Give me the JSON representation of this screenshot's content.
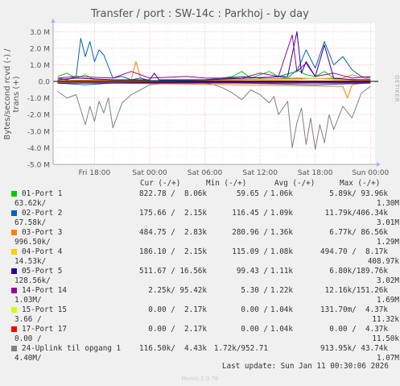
{
  "title": "Transfer / port : SW-14c : Parkhoj - by day",
  "side_label": "RRDTOOL / TOBI OETIKER",
  "munin": "Munin 2.0.76",
  "footer": "Last update: Sun Jan 11 00:30:06 2026",
  "headers": {
    "cur": "Cur (-/+)",
    "min": "Min (-/+)",
    "avg": "Avg (-/+)",
    "max": "Max (-/+)"
  },
  "chart_data": {
    "type": "line",
    "ylabel": "Bytes/second rcvd (-) / trans (+)",
    "ylim": [
      -5.0,
      3.5
    ],
    "yticks": [
      "3.0 M",
      "2.0 M",
      "1.0 M",
      "0.0",
      "-1.0 M",
      "-2.0 M",
      "-3.0 M",
      "-4.0 M",
      "-5.0 M"
    ],
    "ytick_values": [
      3,
      2,
      1,
      0,
      -1,
      -2,
      -3,
      -4,
      -5
    ],
    "xticks": [
      "Fri 18:00",
      "Sat 00:00",
      "Sat 06:00",
      "Sat 12:00",
      "Sat 18:00",
      "Sun 00:00"
    ],
    "xtick_hours": [
      18,
      24,
      30,
      36,
      42,
      48
    ],
    "xlim_hours": [
      13.5,
      48.5
    ],
    "series": [
      {
        "name": "01-Port 1",
        "color": "#00cc00",
        "cur": "822.78 /  8.06k",
        "min": "59.65 /",
        "avg": "1.06k",
        "max": "5.89k/ 93.96k",
        "cur2": "63.62k/",
        "max2": "1.30M",
        "out": [
          [
            14,
            0.3
          ],
          [
            15,
            0.5
          ],
          [
            16,
            0.2
          ],
          [
            17,
            0.4
          ],
          [
            18,
            0.1
          ],
          [
            20,
            0.05
          ],
          [
            22,
            0.1
          ],
          [
            24,
            0.05
          ],
          [
            30,
            0.05
          ],
          [
            33,
            0.3
          ],
          [
            34,
            0.6
          ],
          [
            35,
            0.2
          ],
          [
            36,
            0.4
          ],
          [
            37,
            0.6
          ],
          [
            38,
            0.3
          ],
          [
            39,
            0.2
          ],
          [
            40,
            0.7
          ],
          [
            41,
            0.4
          ],
          [
            42,
            0.3
          ],
          [
            43,
            0.6
          ],
          [
            44,
            0.2
          ],
          [
            46,
            0.1
          ],
          [
            48,
            0.1
          ]
        ],
        "in": [
          [
            14,
            -0.05
          ],
          [
            20,
            -0.02
          ],
          [
            30,
            -0.02
          ],
          [
            40,
            -0.05
          ],
          [
            48,
            -0.02
          ]
        ]
      },
      {
        "name": "02-Port 2",
        "color": "#0066b3",
        "cur": "175.66 /  2.15k",
        "min": "116.45 /",
        "avg": "1.09k",
        "max": "11.79k/406.34k",
        "cur2": "67.58k/",
        "max2": "3.01M",
        "out": [
          [
            14,
            0.2
          ],
          [
            15,
            0.1
          ],
          [
            16,
            0.3
          ],
          [
            16.5,
            2.6
          ],
          [
            17,
            1.5
          ],
          [
            17.5,
            2.4
          ],
          [
            18,
            1.2
          ],
          [
            18.5,
            1.9
          ],
          [
            19,
            1.6
          ],
          [
            19.5,
            0.9
          ],
          [
            20,
            0.2
          ],
          [
            21,
            0.3
          ],
          [
            22,
            0.1
          ],
          [
            23,
            0.2
          ],
          [
            24,
            0.05
          ],
          [
            28,
            0.05
          ],
          [
            30,
            0.1
          ],
          [
            34,
            0.3
          ],
          [
            36,
            0.2
          ],
          [
            38,
            0.3
          ],
          [
            40,
            0.6
          ],
          [
            41,
            1.9
          ],
          [
            42,
            0.8
          ],
          [
            43,
            2.4
          ],
          [
            44,
            1.0
          ],
          [
            45,
            1.5
          ],
          [
            46,
            0.7
          ],
          [
            47,
            0.3
          ],
          [
            48,
            0.2
          ]
        ],
        "in": [
          [
            14,
            -0.1
          ],
          [
            17,
            -0.2
          ],
          [
            20,
            -0.1
          ],
          [
            30,
            -0.05
          ],
          [
            42,
            -0.2
          ],
          [
            48,
            -0.1
          ]
        ]
      },
      {
        "name": "03-Port 3",
        "color": "#ff8000",
        "cur": "484.75 /  2.83k",
        "min": "280.96 /",
        "avg": "1.36k",
        "max": "6.77k/ 86.56k",
        "cur2": "996.50k/",
        "max2": "1.29M",
        "out": [
          [
            14,
            0.05
          ],
          [
            22,
            0.1
          ],
          [
            22.5,
            1.2
          ],
          [
            23,
            0.2
          ],
          [
            24,
            0.05
          ],
          [
            45,
            0.2
          ],
          [
            46,
            0.4
          ],
          [
            48,
            0.1
          ]
        ],
        "in": [
          [
            14,
            -0.05
          ],
          [
            45,
            -0.3
          ],
          [
            45.5,
            -1.0
          ],
          [
            46,
            -0.2
          ],
          [
            48,
            -0.05
          ]
        ]
      },
      {
        "name": "04-Port 4",
        "color": "#ffcc00",
        "cur": "186.10 /  2.15k",
        "min": "115.09 /",
        "avg": "1.08k",
        "max": "494.70 /  8.17k",
        "cur2": "14.53k/",
        "max2": "408.97k",
        "out": [
          [
            14,
            0.02
          ],
          [
            30,
            0.02
          ],
          [
            40,
            0.1
          ],
          [
            42,
            0.2
          ],
          [
            44,
            0.1
          ],
          [
            48,
            0.05
          ]
        ],
        "in": [
          [
            14,
            -0.02
          ],
          [
            48,
            -0.02
          ]
        ]
      },
      {
        "name": "05-Port 5",
        "color": "#330099",
        "cur": "511.67 / 16.56k",
        "min": "99.43 /",
        "avg": "1.11k",
        "max": "6.80k/189.76k",
        "cur2": "128.56k/",
        "max2": "3.02M",
        "out": [
          [
            14,
            0.1
          ],
          [
            16,
            0.2
          ],
          [
            20,
            0.1
          ],
          [
            24,
            0.1
          ],
          [
            24.5,
            0.5
          ],
          [
            25,
            0.1
          ],
          [
            30,
            0.1
          ],
          [
            39,
            0.3
          ],
          [
            40,
            3.0
          ],
          [
            40.5,
            0.5
          ],
          [
            41,
            1.2
          ],
          [
            42,
            0.3
          ],
          [
            43,
            2.2
          ],
          [
            44,
            0.2
          ],
          [
            46,
            0.1
          ],
          [
            48,
            0.1
          ]
        ],
        "in": [
          [
            14,
            -0.1
          ],
          [
            30,
            -0.05
          ],
          [
            48,
            -0.05
          ]
        ]
      },
      {
        "name": "14-Port 14",
        "color": "#990099",
        "cur": "2.25k/ 95.42k",
        "min": "5.30 /",
        "avg": "1.22k",
        "max": "12.16k/151.26k",
        "cur2": "1.03M/",
        "max2": "1.69M",
        "out": [
          [
            14,
            0.2
          ],
          [
            16,
            0.3
          ],
          [
            20,
            0.2
          ],
          [
            22,
            0.6
          ],
          [
            24,
            0.2
          ],
          [
            28,
            0.3
          ],
          [
            30,
            0.2
          ],
          [
            34,
            0.2
          ],
          [
            36,
            0.5
          ],
          [
            38,
            0.3
          ],
          [
            39.5,
            2.8
          ],
          [
            40,
            0.6
          ],
          [
            41,
            1.1
          ],
          [
            42,
            0.3
          ],
          [
            44,
            0.5
          ],
          [
            46,
            0.2
          ],
          [
            48,
            0.3
          ]
        ],
        "in": [
          [
            14,
            -0.1
          ],
          [
            48,
            -0.1
          ]
        ]
      },
      {
        "name": "15-Port 15",
        "color": "#ccff00",
        "cur": "0.00 /  2.17k",
        "min": "0.00 /",
        "avg": "1.04k",
        "max": "131.70m/  4.37k",
        "cur2": "3.66 /",
        "max2": "11.32k",
        "out": [
          [
            14,
            0.02
          ],
          [
            48,
            0.02
          ]
        ],
        "in": [
          [
            14,
            0
          ],
          [
            48,
            0
          ]
        ]
      },
      {
        "name": "17-Port 17",
        "color": "#ff0000",
        "cur": "0.00 /  2.17k",
        "min": "0.00 /",
        "avg": "1.04k",
        "max": "0.00 /  4.37k",
        "cur2": "0.00 /",
        "max2": "11.50k",
        "out": [
          [
            14,
            0.02
          ],
          [
            48,
            0.02
          ]
        ],
        "in": [
          [
            14,
            0
          ],
          [
            48,
            0
          ]
        ]
      },
      {
        "name": "24-Uplink til opgang 1",
        "color": "#808080",
        "cur": "116.50k/  4.43k",
        "min": "1.72k/952.71",
        "avg": "",
        "max": "913.95k/ 43.74k",
        "cur2": "4.40M/",
        "max2": "1.07M",
        "out": [
          [
            14,
            0.05
          ],
          [
            20,
            0.1
          ],
          [
            24,
            0.05
          ],
          [
            30,
            0.05
          ],
          [
            40,
            0.2
          ],
          [
            48,
            0.1
          ]
        ],
        "in": [
          [
            14,
            -0.6
          ],
          [
            15,
            -1.0
          ],
          [
            16,
            -0.8
          ],
          [
            16.5,
            -1.7
          ],
          [
            17,
            -2.6
          ],
          [
            17.5,
            -1.5
          ],
          [
            18,
            -2.4
          ],
          [
            18.5,
            -1.2
          ],
          [
            19,
            -1.9
          ],
          [
            19.5,
            -1.0
          ],
          [
            20,
            -2.8
          ],
          [
            21,
            -1.3
          ],
          [
            22,
            -0.8
          ],
          [
            23,
            -0.5
          ],
          [
            24,
            -0.2
          ],
          [
            26,
            -0.1
          ],
          [
            28,
            -0.1
          ],
          [
            30,
            -0.1
          ],
          [
            31,
            -0.2
          ],
          [
            32,
            -0.4
          ],
          [
            33,
            -0.7
          ],
          [
            34,
            -1.1
          ],
          [
            35,
            -0.5
          ],
          [
            36,
            -0.8
          ],
          [
            37,
            -1.3
          ],
          [
            37.5,
            -0.9
          ],
          [
            38,
            -2.0
          ],
          [
            39,
            -1.2
          ],
          [
            39.5,
            -4.0
          ],
          [
            40,
            -2.5
          ],
          [
            40.5,
            -1.6
          ],
          [
            41,
            -3.8
          ],
          [
            41.5,
            -2.2
          ],
          [
            42,
            -4.1
          ],
          [
            42.5,
            -2.6
          ],
          [
            43,
            -3.7
          ],
          [
            43.5,
            -2.0
          ],
          [
            44,
            -2.9
          ],
          [
            45,
            -1.5
          ],
          [
            46,
            -2.2
          ],
          [
            47,
            -0.7
          ],
          [
            48,
            -0.3
          ]
        ]
      }
    ]
  }
}
